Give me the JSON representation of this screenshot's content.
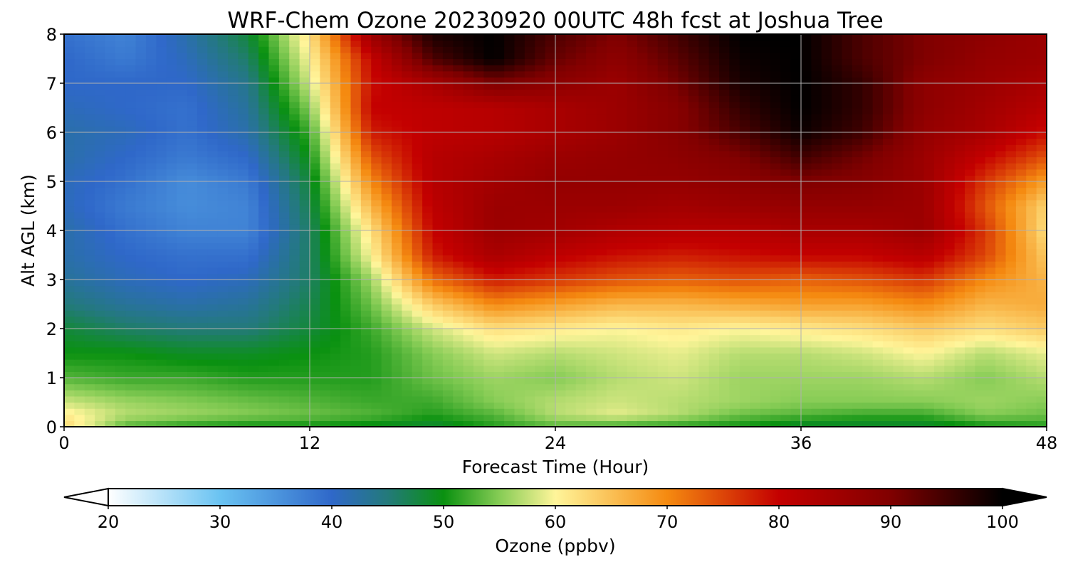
{
  "chart_data": {
    "type": "heatmap",
    "title": "WRF-Chem Ozone  20230920 00UTC 48h fcst at Joshua Tree",
    "xlabel": "Forecast Time (Hour)",
    "ylabel": "Alt AGL (km)",
    "xlim": [
      0,
      48
    ],
    "ylim": [
      0,
      8
    ],
    "x_ticks": [
      "0",
      "12",
      "24",
      "36",
      "48"
    ],
    "y_ticks": [
      "0",
      "1",
      "2",
      "3",
      "4",
      "5",
      "6",
      "7",
      "8"
    ],
    "grid": true,
    "colorbar": {
      "label": "Ozone  (ppbv)",
      "range": [
        20,
        100
      ],
      "ticks": [
        "20",
        "30",
        "40",
        "50",
        "60",
        "70",
        "80",
        "90",
        "100"
      ],
      "extend": "both",
      "color_stops": [
        {
          "value": 20,
          "color": "#ffffff"
        },
        {
          "value": 30,
          "color": "#6ac3f2"
        },
        {
          "value": 40,
          "color": "#2f68c9"
        },
        {
          "value": 45,
          "color": "#237a7a"
        },
        {
          "value": 50,
          "color": "#0a9110"
        },
        {
          "value": 55,
          "color": "#86cc55"
        },
        {
          "value": 60,
          "color": "#fff59a"
        },
        {
          "value": 70,
          "color": "#f58a10"
        },
        {
          "value": 80,
          "color": "#c40000"
        },
        {
          "value": 90,
          "color": "#800000"
        },
        {
          "value": 100,
          "color": "#000000"
        }
      ]
    },
    "x_hours": [
      0,
      3,
      6,
      9,
      12,
      15,
      18,
      21,
      24,
      27,
      30,
      33,
      36,
      39,
      42,
      45,
      48
    ],
    "y_km": [
      0,
      0.25,
      0.5,
      1,
      1.5,
      2,
      2.5,
      3,
      3.5,
      4,
      4.5,
      5,
      5.5,
      6,
      6.5,
      7,
      7.5,
      8
    ],
    "values_ppbv": [
      [
        63,
        53,
        51,
        50,
        50,
        49,
        48,
        51,
        53,
        52,
        51,
        50,
        48,
        48,
        48,
        50,
        51
      ],
      [
        61,
        57,
        56,
        55,
        54,
        53,
        51,
        53,
        57,
        59,
        57,
        54,
        53,
        52,
        52,
        55,
        54
      ],
      [
        58,
        56,
        55,
        54,
        53,
        52,
        52,
        55,
        57,
        58,
        57,
        56,
        55,
        55,
        55,
        56,
        55
      ],
      [
        53,
        52,
        52,
        51,
        51,
        51,
        54,
        56,
        55,
        57,
        58,
        56,
        56,
        56,
        57,
        55,
        57
      ],
      [
        50,
        50,
        49,
        49,
        50,
        51,
        55,
        58,
        57,
        58,
        59,
        57,
        57,
        58,
        60,
        57,
        59
      ],
      [
        48,
        46,
        45,
        45,
        48,
        52,
        58,
        62,
        61,
        60,
        61,
        60,
        61,
        62,
        64,
        62,
        64
      ],
      [
        45,
        43,
        42,
        43,
        47,
        54,
        64,
        70,
        68,
        66,
        66,
        67,
        68,
        68,
        70,
        66,
        67
      ],
      [
        43,
        41,
        40,
        41,
        46,
        56,
        72,
        78,
        76,
        74,
        73,
        74,
        73,
        74,
        76,
        70,
        66
      ],
      [
        42,
        40,
        39,
        39,
        46,
        60,
        78,
        84,
        81,
        79,
        78,
        79,
        80,
        80,
        82,
        75,
        64
      ],
      [
        42,
        39,
        37,
        37,
        46,
        62,
        80,
        86,
        85,
        83,
        82,
        82,
        84,
        84,
        86,
        76,
        62
      ],
      [
        41,
        38,
        36,
        37,
        47,
        66,
        81,
        86,
        86,
        86,
        85,
        86,
        87,
        87,
        86,
        74,
        63
      ],
      [
        41,
        39,
        36,
        38,
        48,
        70,
        82,
        85,
        87,
        87,
        87,
        88,
        90,
        89,
        86,
        76,
        68
      ],
      [
        42,
        40,
        38,
        40,
        50,
        74,
        82,
        84,
        86,
        87,
        88,
        90,
        95,
        91,
        86,
        80,
        74
      ],
      [
        42,
        41,
        39,
        42,
        52,
        78,
        81,
        82,
        84,
        86,
        89,
        94,
        99,
        95,
        87,
        84,
        79
      ],
      [
        41,
        40,
        39,
        43,
        55,
        80,
        81,
        82,
        84,
        86,
        89,
        96,
        100,
        96,
        88,
        85,
        82
      ],
      [
        40,
        40,
        40,
        44,
        58,
        79,
        84,
        90,
        88,
        86,
        91,
        98,
        100,
        96,
        88,
        86,
        84
      ],
      [
        40,
        38,
        41,
        46,
        60,
        80,
        94,
        100,
        92,
        88,
        93,
        99,
        100,
        94,
        90,
        87,
        86
      ],
      [
        39,
        37,
        42,
        48,
        62,
        86,
        98,
        100,
        94,
        90,
        95,
        100,
        100,
        94,
        90,
        88,
        86
      ]
    ]
  }
}
